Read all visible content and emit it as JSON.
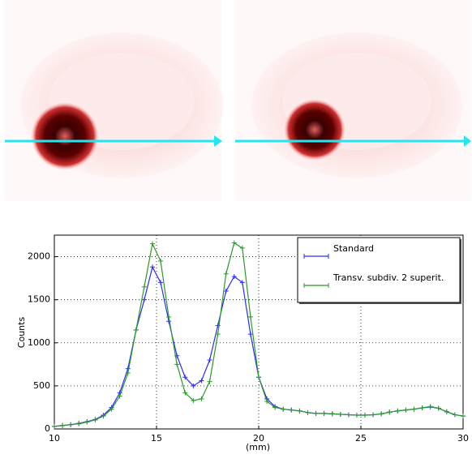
{
  "chart_data": {
    "type": "line",
    "x": [
      10,
      10.4,
      10.8,
      11.2,
      11.6,
      12,
      12.4,
      12.8,
      13.2,
      13.6,
      14,
      14.4,
      14.8,
      15.2,
      15.6,
      16,
      16.4,
      16.8,
      17.2,
      17.6,
      18,
      18.4,
      18.8,
      19.2,
      19.6,
      20,
      20.4,
      20.8,
      21.2,
      21.6,
      22,
      22.4,
      22.8,
      23.2,
      23.6,
      24,
      24.4,
      24.8,
      25.2,
      25.6,
      26,
      26.4,
      26.8,
      27.2,
      27.6,
      28,
      28.4,
      28.8,
      29.2,
      29.6,
      30
    ],
    "series": [
      {
        "name": "Standard",
        "color": "#2b2bff",
        "values": [
          30,
          40,
          50,
          65,
          85,
          110,
          160,
          250,
          420,
          700,
          1150,
          1500,
          1880,
          1700,
          1250,
          850,
          600,
          500,
          560,
          800,
          1200,
          1600,
          1770,
          1700,
          1100,
          600,
          350,
          260,
          230,
          220,
          210,
          190,
          180,
          180,
          175,
          170,
          165,
          160,
          160,
          165,
          175,
          195,
          210,
          220,
          230,
          245,
          255,
          240,
          200,
          165,
          150
        ]
      },
      {
        "name": "Transv. subdiv. 2 superit.",
        "color": "#2a9a2a",
        "values": [
          30,
          40,
          50,
          60,
          80,
          105,
          150,
          230,
          380,
          650,
          1150,
          1650,
          2150,
          1950,
          1300,
          750,
          420,
          330,
          350,
          550,
          1100,
          1800,
          2160,
          2100,
          1300,
          600,
          320,
          250,
          230,
          220,
          210,
          190,
          180,
          180,
          175,
          170,
          165,
          160,
          160,
          165,
          175,
          195,
          210,
          220,
          230,
          245,
          260,
          240,
          200,
          165,
          150
        ]
      }
    ],
    "xlim": [
      10,
      30
    ],
    "xticks": [
      10,
      15,
      20,
      25,
      30
    ],
    "ylim": [
      0,
      2250
    ],
    "yticks": [
      0,
      500,
      1000,
      1500,
      2000
    ],
    "xlabel": "(mm)",
    "ylabel": "Counts",
    "grid": true,
    "legend": "upper right"
  }
}
